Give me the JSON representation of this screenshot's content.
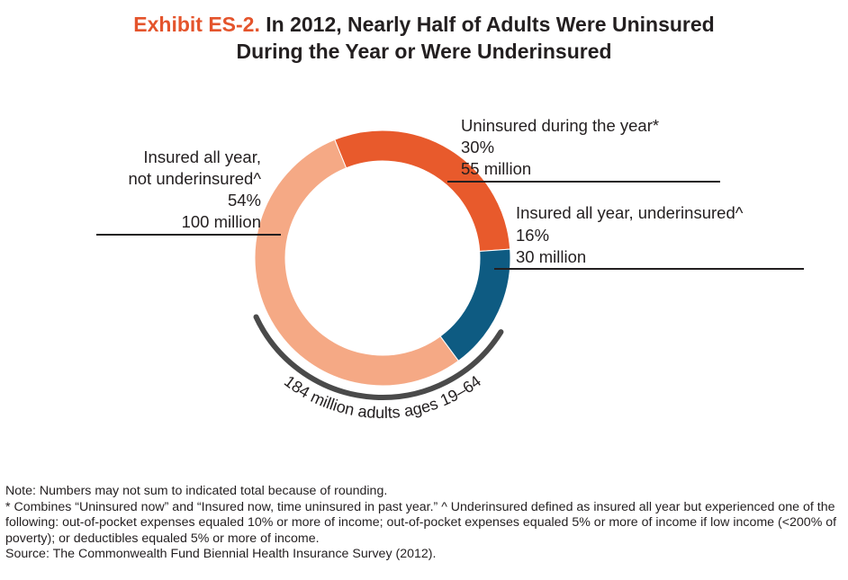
{
  "header": {
    "exhibit_label": "Exhibit ES-2.",
    "title_line1": "In 2012, Nearly Half of Adults Were Uninsured",
    "title_line2": "During the Year or Were Underinsured"
  },
  "chart_data": {
    "type": "pie",
    "style": "donut",
    "total_label": "184 million adults ages 19–64",
    "slices": [
      {
        "name_lines": [
          "Uninsured during the year*"
        ],
        "percent": 30,
        "percent_label": "30%",
        "count_label": "55 million",
        "color": "#e85a2c"
      },
      {
        "name_lines": [
          "Insured all year, underinsured^"
        ],
        "percent": 16,
        "percent_label": "16%",
        "count_label": "30 million",
        "color": "#0e5b82"
      },
      {
        "name_lines": [
          "Insured all year,",
          "not underinsured^"
        ],
        "percent": 54,
        "percent_label": "54%",
        "count_label": "100 million",
        "color": "#f5a985"
      }
    ]
  },
  "notes": {
    "line1": "Note: Numbers may not sum to indicated total because of rounding.",
    "line2": "* Combines “Uninsured now” and “Insured now, time uninsured in past year.” ^ Underinsured defined as insured all year but experienced one of the following: out-of-pocket expenses equaled 10% or more of income; out-of-pocket expenses equaled 5% or more of income if low income (<200% of poverty); or deductibles equaled 5% or more of income.",
    "line3": "Source: The Commonwealth Fund Biennial Health Insurance Survey (2012)."
  }
}
